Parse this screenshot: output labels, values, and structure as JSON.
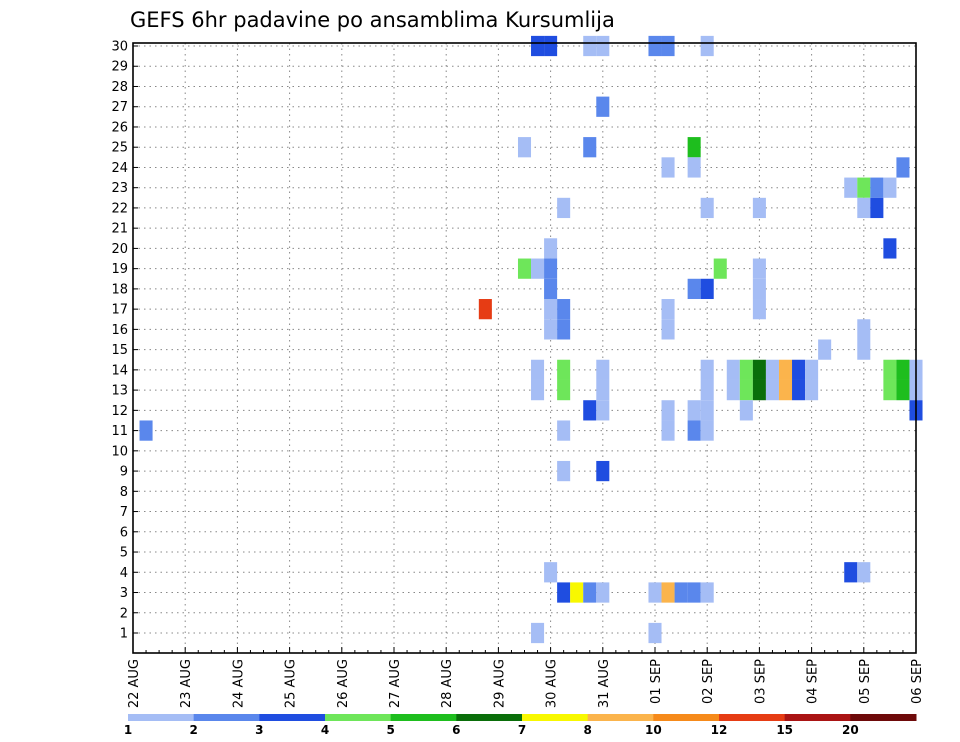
{
  "chart_data": {
    "type": "heatmap",
    "title": "GEFS 6hr padavine po ansamblima Kursumlija",
    "xlabel": "",
    "ylabel": "",
    "grid": true,
    "x_range": [
      "22 AUG 00Z",
      "06 SEP 00Z"
    ],
    "x_step_hours": 6,
    "x_tick_labels": [
      "22 AUG",
      "23 AUG",
      "24 AUG",
      "25 AUG",
      "26 AUG",
      "27 AUG",
      "28 AUG",
      "29 AUG",
      "30 AUG",
      "31 AUG",
      "01 SEP",
      "02 SEP",
      "03 SEP",
      "04 SEP",
      "05 SEP",
      "06 SEP"
    ],
    "y_range": [
      1,
      30
    ],
    "y_tick_labels": [
      "1",
      "2",
      "3",
      "4",
      "5",
      "6",
      "7",
      "8",
      "9",
      "10",
      "11",
      "12",
      "13",
      "14",
      "15",
      "16",
      "17",
      "18",
      "19",
      "20",
      "21",
      "22",
      "23",
      "24",
      "25",
      "26",
      "27",
      "28",
      "29",
      "30"
    ],
    "colorbar": {
      "labels": [
        "1",
        "2",
        "3",
        "4",
        "5",
        "6",
        "7",
        "8",
        "10",
        "12",
        "15",
        "20"
      ],
      "colors": [
        "#a5bdf5",
        "#5a87ec",
        "#1f4de0",
        "#6ee65a",
        "#1ebe1e",
        "#0a6e0a",
        "#f8f800",
        "#fbb44c",
        "#f68a1a",
        "#e63c14",
        "#aa1414",
        "#6e0a0a"
      ]
    },
    "cells": [
      {
        "member": 30,
        "time": "29 AUG 18Z",
        "class": 3
      },
      {
        "member": 30,
        "time": "30 AUG 00Z",
        "class": 3
      },
      {
        "member": 30,
        "time": "30 AUG 18Z",
        "class": 1
      },
      {
        "member": 30,
        "time": "31 AUG 00Z",
        "class": 1
      },
      {
        "member": 30,
        "time": "01 SEP 00Z",
        "class": 2
      },
      {
        "member": 30,
        "time": "01 SEP 06Z",
        "class": 2
      },
      {
        "member": 30,
        "time": "02 SEP 00Z",
        "class": 1
      },
      {
        "member": 27,
        "time": "31 AUG 00Z",
        "class": 2
      },
      {
        "member": 25,
        "time": "29 AUG 12Z",
        "class": 1
      },
      {
        "member": 25,
        "time": "30 AUG 18Z",
        "class": 2
      },
      {
        "member": 25,
        "time": "01 SEP 18Z",
        "class": 5
      },
      {
        "member": 24,
        "time": "01 SEP 06Z",
        "class": 1
      },
      {
        "member": 24,
        "time": "01 SEP 18Z",
        "class": 1
      },
      {
        "member": 24,
        "time": "05 SEP 18Z",
        "class": 2
      },
      {
        "member": 23,
        "time": "04 SEP 18Z",
        "class": 1
      },
      {
        "member": 23,
        "time": "05 SEP 00Z",
        "class": 4
      },
      {
        "member": 23,
        "time": "05 SEP 06Z",
        "class": 2
      },
      {
        "member": 23,
        "time": "05 SEP 12Z",
        "class": 1
      },
      {
        "member": 22,
        "time": "30 AUG 06Z",
        "class": 1
      },
      {
        "member": 22,
        "time": "02 SEP 00Z",
        "class": 1
      },
      {
        "member": 22,
        "time": "03 SEP 00Z",
        "class": 1
      },
      {
        "member": 22,
        "time": "05 SEP 00Z",
        "class": 1
      },
      {
        "member": 22,
        "time": "05 SEP 06Z",
        "class": 3
      },
      {
        "member": 20,
        "time": "30 AUG 00Z",
        "class": 1
      },
      {
        "member": 20,
        "time": "05 SEP 12Z",
        "class": 3
      },
      {
        "member": 19,
        "time": "29 AUG 12Z",
        "class": 4
      },
      {
        "member": 19,
        "time": "29 AUG 18Z",
        "class": 1
      },
      {
        "member": 19,
        "time": "30 AUG 00Z",
        "class": 2
      },
      {
        "member": 19,
        "time": "02 SEP 06Z",
        "class": 4
      },
      {
        "member": 19,
        "time": "03 SEP 00Z",
        "class": 1
      },
      {
        "member": 18,
        "time": "30 AUG 00Z",
        "class": 2
      },
      {
        "member": 18,
        "time": "01 SEP 18Z",
        "class": 2
      },
      {
        "member": 18,
        "time": "02 SEP 00Z",
        "class": 3
      },
      {
        "member": 18,
        "time": "03 SEP 00Z",
        "class": 1
      },
      {
        "member": 17,
        "time": "28 AUG 18Z",
        "class": 10
      },
      {
        "member": 17,
        "time": "30 AUG 00Z",
        "class": 1
      },
      {
        "member": 17,
        "time": "30 AUG 06Z",
        "class": 2
      },
      {
        "member": 17,
        "time": "01 SEP 06Z",
        "class": 1
      },
      {
        "member": 17,
        "time": "03 SEP 00Z",
        "class": 1
      },
      {
        "member": 16,
        "time": "30 AUG 00Z",
        "class": 1
      },
      {
        "member": 16,
        "time": "30 AUG 06Z",
        "class": 2
      },
      {
        "member": 16,
        "time": "01 SEP 06Z",
        "class": 1
      },
      {
        "member": 16,
        "time": "05 SEP 00Z",
        "class": 1
      },
      {
        "member": 15,
        "time": "04 SEP 06Z",
        "class": 1
      },
      {
        "member": 15,
        "time": "05 SEP 00Z",
        "class": 1
      },
      {
        "member": 14,
        "time": "29 AUG 18Z",
        "class": 1
      },
      {
        "member": 14,
        "time": "30 AUG 06Z",
        "class": 4
      },
      {
        "member": 14,
        "time": "31 AUG 00Z",
        "class": 1
      },
      {
        "member": 14,
        "time": "02 SEP 00Z",
        "class": 1
      },
      {
        "member": 14,
        "time": "02 SEP 12Z",
        "class": 1
      },
      {
        "member": 14,
        "time": "02 SEP 18Z",
        "class": 4
      },
      {
        "member": 14,
        "time": "03 SEP 00Z",
        "class": 6
      },
      {
        "member": 14,
        "time": "03 SEP 06Z",
        "class": 1
      },
      {
        "member": 14,
        "time": "03 SEP 12Z",
        "class": 8
      },
      {
        "member": 14,
        "time": "03 SEP 18Z",
        "class": 3
      },
      {
        "member": 14,
        "time": "04 SEP 00Z",
        "class": 1
      },
      {
        "member": 14,
        "time": "05 SEP 12Z",
        "class": 4
      },
      {
        "member": 14,
        "time": "05 SEP 18Z",
        "class": 5
      },
      {
        "member": 14,
        "time": "06 SEP 00Z",
        "class": 1
      },
      {
        "member": 13,
        "time": "29 AUG 18Z",
        "class": 1
      },
      {
        "member": 13,
        "time": "30 AUG 06Z",
        "class": 4
      },
      {
        "member": 13,
        "time": "31 AUG 00Z",
        "class": 1
      },
      {
        "member": 13,
        "time": "02 SEP 00Z",
        "class": 1
      },
      {
        "member": 13,
        "time": "02 SEP 12Z",
        "class": 1
      },
      {
        "member": 13,
        "time": "02 SEP 18Z",
        "class": 4
      },
      {
        "member": 13,
        "time": "03 SEP 00Z",
        "class": 6
      },
      {
        "member": 13,
        "time": "03 SEP 06Z",
        "class": 1
      },
      {
        "member": 13,
        "time": "03 SEP 12Z",
        "class": 8
      },
      {
        "member": 13,
        "time": "03 SEP 18Z",
        "class": 3
      },
      {
        "member": 13,
        "time": "04 SEP 00Z",
        "class": 1
      },
      {
        "member": 13,
        "time": "05 SEP 12Z",
        "class": 4
      },
      {
        "member": 13,
        "time": "05 SEP 18Z",
        "class": 5
      },
      {
        "member": 13,
        "time": "06 SEP 00Z",
        "class": 1
      },
      {
        "member": 12,
        "time": "30 AUG 18Z",
        "class": 3
      },
      {
        "member": 12,
        "time": "31 AUG 00Z",
        "class": 1
      },
      {
        "member": 12,
        "time": "01 SEP 06Z",
        "class": 1
      },
      {
        "member": 12,
        "time": "01 SEP 18Z",
        "class": 1
      },
      {
        "member": 12,
        "time": "02 SEP 00Z",
        "class": 1
      },
      {
        "member": 12,
        "time": "02 SEP 18Z",
        "class": 1
      },
      {
        "member": 12,
        "time": "06 SEP 00Z",
        "class": 3
      },
      {
        "member": 11,
        "time": "22 AUG 06Z",
        "class": 2
      },
      {
        "member": 11,
        "time": "30 AUG 06Z",
        "class": 1
      },
      {
        "member": 11,
        "time": "01 SEP 06Z",
        "class": 1
      },
      {
        "member": 11,
        "time": "01 SEP 18Z",
        "class": 2
      },
      {
        "member": 11,
        "time": "02 SEP 00Z",
        "class": 1
      },
      {
        "member": 9,
        "time": "30 AUG 06Z",
        "class": 1
      },
      {
        "member": 9,
        "time": "31 AUG 00Z",
        "class": 3
      },
      {
        "member": 4,
        "time": "30 AUG 00Z",
        "class": 1
      },
      {
        "member": 4,
        "time": "04 SEP 18Z",
        "class": 3
      },
      {
        "member": 4,
        "time": "05 SEP 00Z",
        "class": 1
      },
      {
        "member": 3,
        "time": "30 AUG 06Z",
        "class": 3
      },
      {
        "member": 3,
        "time": "30 AUG 12Z",
        "class": 7
      },
      {
        "member": 3,
        "time": "30 AUG 18Z",
        "class": 2
      },
      {
        "member": 3,
        "time": "31 AUG 00Z",
        "class": 1
      },
      {
        "member": 3,
        "time": "01 SEP 00Z",
        "class": 1
      },
      {
        "member": 3,
        "time": "01 SEP 06Z",
        "class": 8
      },
      {
        "member": 3,
        "time": "01 SEP 12Z",
        "class": 2
      },
      {
        "member": 3,
        "time": "01 SEP 18Z",
        "class": 2
      },
      {
        "member": 3,
        "time": "02 SEP 00Z",
        "class": 1
      },
      {
        "member": 1,
        "time": "29 AUG 18Z",
        "class": 1
      },
      {
        "member": 1,
        "time": "01 SEP 00Z",
        "class": 1
      }
    ]
  }
}
